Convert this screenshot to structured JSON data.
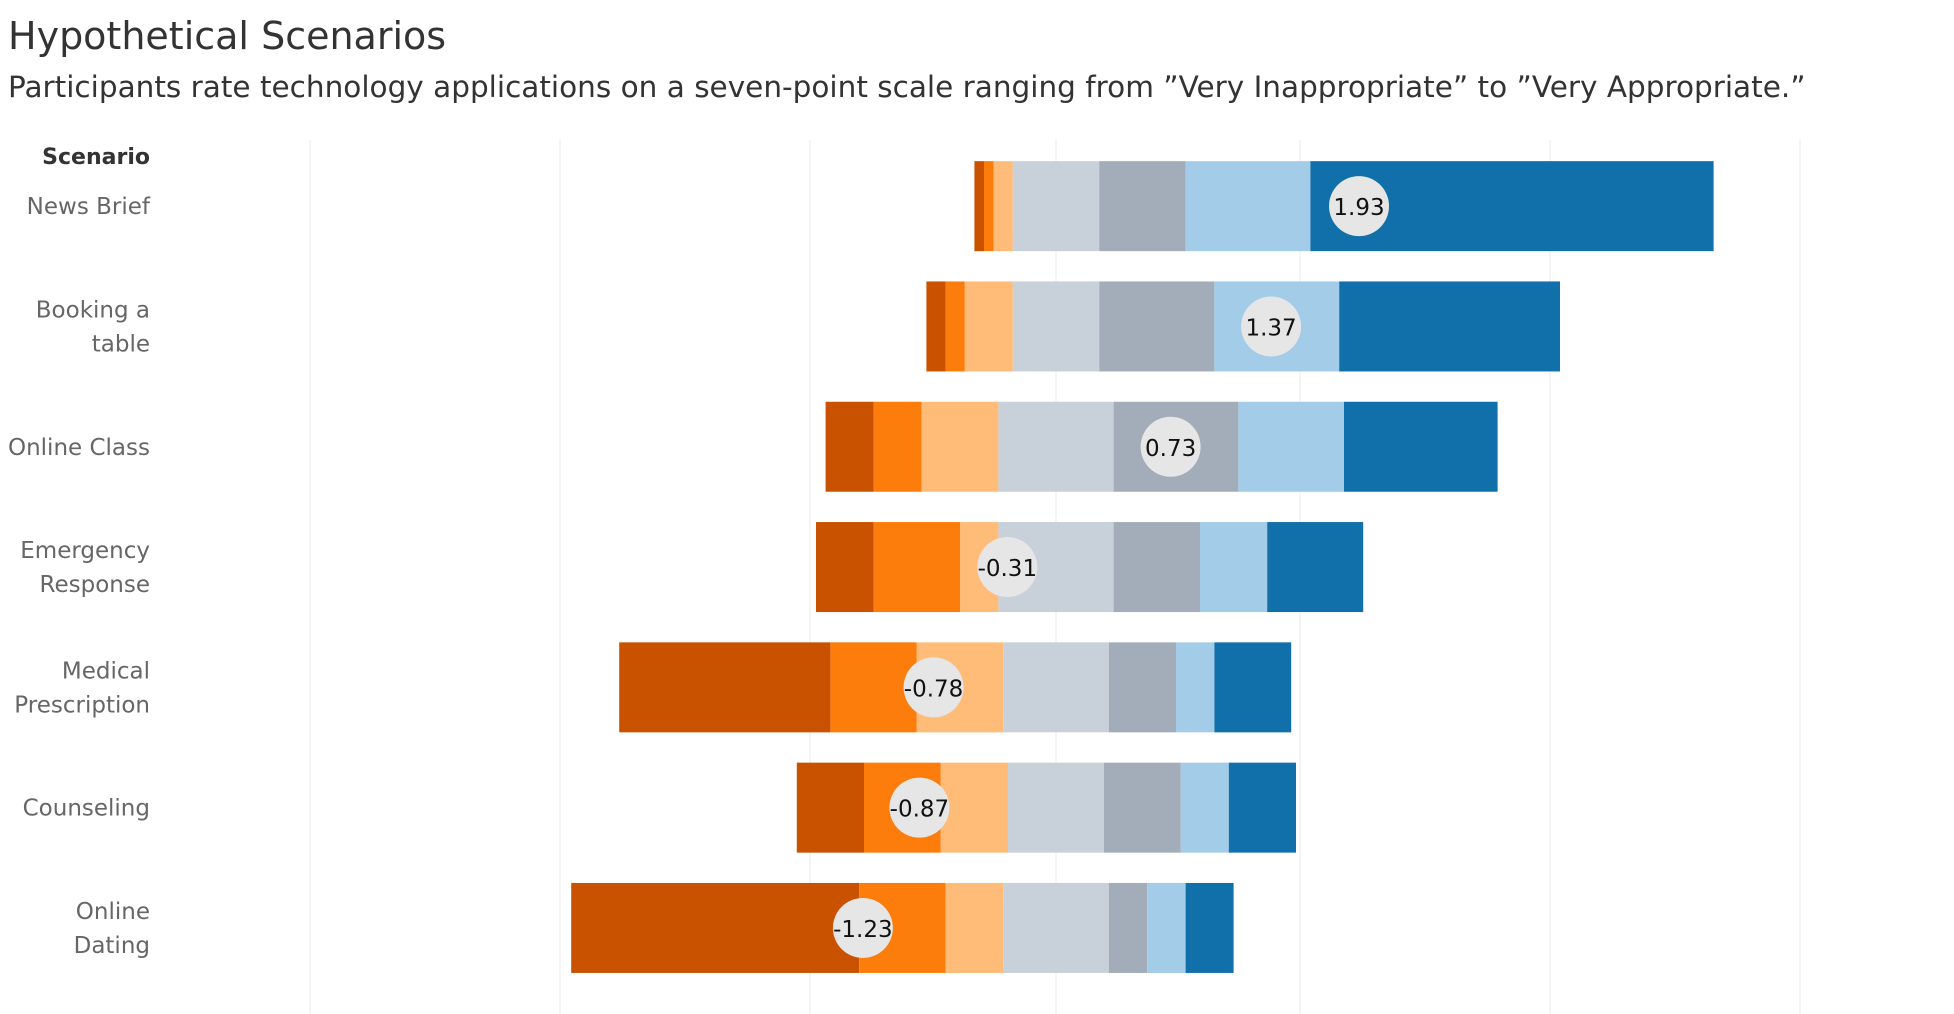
{
  "title": "Hypothetical Scenarios",
  "subtitle": "Participants rate technology applications on a seven-point scale ranging from ”Very Inappropriate” to ”Very Appropriate.”",
  "chart_data": {
    "type": "bar",
    "orientation": "horizontal",
    "stacked": "diverging",
    "row_header": "Scenario",
    "categories": [
      "News Brief",
      "Booking a table",
      "Online Class",
      "Emergency Response",
      "Medical Prescription",
      "Counseling",
      "Online Dating"
    ],
    "category_lines": [
      [
        "News Brief"
      ],
      [
        "Booking a",
        "table"
      ],
      [
        "Online Class"
      ],
      [
        "Emergency",
        "Response"
      ],
      [
        "Medical",
        "Prescription"
      ],
      [
        "Counseling"
      ],
      [
        "Online",
        "Dating"
      ]
    ],
    "series": [
      {
        "values": [
          1,
          2,
          5,
          6,
          22,
          7,
          30
        ]
      },
      {
        "values": [
          1,
          2,
          5,
          9,
          9,
          8,
          9
        ]
      },
      {
        "values": [
          2,
          5,
          8,
          4,
          9,
          7,
          6
        ]
      },
      {
        "values": [
          9,
          9,
          12,
          12,
          11,
          10,
          11
        ]
      },
      {
        "values": [
          9,
          12,
          13,
          9,
          7,
          8,
          4
        ]
      },
      {
        "values": [
          13,
          13,
          11,
          7,
          4,
          5,
          4
        ]
      },
      {
        "values": [
          42,
          23,
          16,
          10,
          8,
          7,
          5
        ]
      }
    ],
    "neutral_index": 3,
    "means": [
      1.93,
      1.37,
      0.73,
      -0.31,
      -0.78,
      -0.87,
      -1.23
    ],
    "mean_labels": [
      "1.93",
      "1.37",
      "0.73",
      "-0.31",
      "-0.78",
      "-0.87",
      "-1.23"
    ],
    "mean_axis_range": [
      -3,
      3
    ],
    "colors": [
      "#c85200",
      "#fc7d0b",
      "#ffbc79",
      "#c8d0d9",
      "#a3acb9",
      "#a3cce9",
      "#1170aa"
    ],
    "grid": "vertical, faint"
  }
}
